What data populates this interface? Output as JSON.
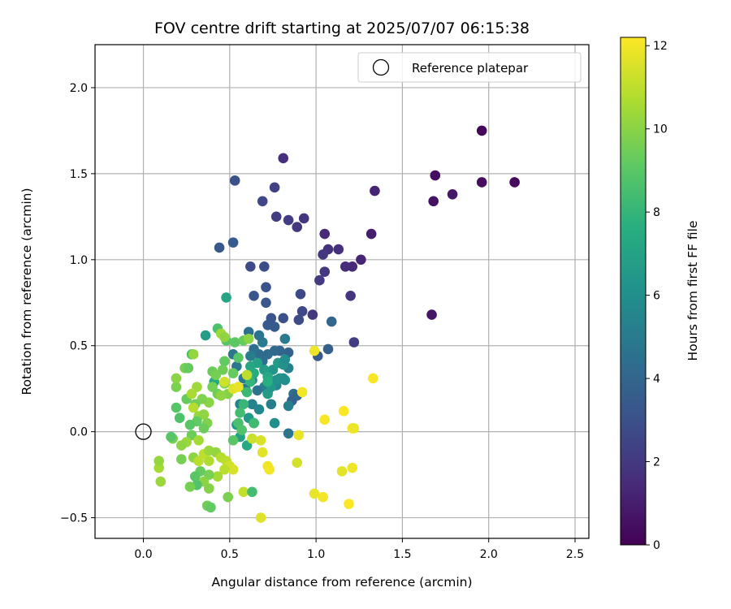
{
  "chart_data": {
    "type": "scatter",
    "title": "FOV centre drift starting at 2025/07/07 06:15:38",
    "xlabel": "Angular distance from reference (arcmin)",
    "ylabel": "Rotation from reference (arcmin)",
    "xlim": [
      -0.28,
      2.58
    ],
    "ylim": [
      -0.62,
      2.25
    ],
    "xticks": [
      0.0,
      0.5,
      1.0,
      1.5,
      2.0,
      2.5
    ],
    "xtick_labels": [
      "0.0",
      "0.5",
      "1.0",
      "1.5",
      "2.0",
      "2.5"
    ],
    "yticks": [
      -0.5,
      0.0,
      0.5,
      1.0,
      1.5,
      2.0
    ],
    "ytick_labels": [
      "−0.5",
      "0.0",
      "0.5",
      "1.0",
      "1.5",
      "2.0"
    ],
    "grid": true,
    "legend": {
      "position": "top-right",
      "label": "Reference platepar"
    },
    "reference_point": {
      "x": 0.0,
      "y": 0.0
    },
    "colorbar": {
      "label": "Hours from first FF file",
      "min": 0,
      "max": 12.2,
      "ticks": [
        0,
        2,
        4,
        6,
        8,
        10,
        12
      ],
      "tick_labels": [
        "0",
        "2",
        "4",
        "6",
        "8",
        "10",
        "12"
      ],
      "colormap": "viridis"
    },
    "points": [
      [
        1.96,
        1.75,
        0.2
      ],
      [
        2.15,
        1.45,
        0.3
      ],
      [
        1.96,
        1.45,
        0.4
      ],
      [
        1.69,
        1.49,
        0.5
      ],
      [
        1.68,
        1.34,
        0.6
      ],
      [
        1.79,
        1.38,
        0.8
      ],
      [
        1.67,
        0.68,
        0.7
      ],
      [
        1.34,
        1.4,
        1.2
      ],
      [
        1.32,
        1.15,
        1.0
      ],
      [
        1.26,
        1.0,
        1.3
      ],
      [
        1.21,
        0.96,
        1.4
      ],
      [
        1.17,
        0.96,
        1.5
      ],
      [
        1.13,
        1.06,
        1.6
      ],
      [
        1.07,
        1.06,
        1.7
      ],
      [
        1.05,
        1.15,
        1.5
      ],
      [
        1.04,
        1.03,
        1.9
      ],
      [
        1.05,
        0.93,
        2.0
      ],
      [
        1.02,
        0.88,
        2.1
      ],
      [
        0.98,
        0.68,
        2.0
      ],
      [
        1.2,
        0.79,
        1.8
      ],
      [
        1.22,
        0.52,
        2.2
      ],
      [
        0.81,
        1.59,
        1.6
      ],
      [
        0.93,
        1.24,
        1.8
      ],
      [
        0.89,
        1.19,
        1.9
      ],
      [
        0.84,
        1.23,
        2.2
      ],
      [
        0.77,
        1.25,
        2.2
      ],
      [
        0.76,
        1.42,
        2.4
      ],
      [
        0.69,
        1.34,
        2.6
      ],
      [
        0.53,
        1.46,
        3.0
      ],
      [
        0.52,
        1.1,
        3.5
      ],
      [
        0.44,
        1.07,
        3.4
      ],
      [
        0.62,
        0.96,
        2.8
      ],
      [
        0.7,
        0.96,
        2.9
      ],
      [
        0.91,
        0.8,
        2.7
      ],
      [
        0.92,
        0.7,
        2.6
      ],
      [
        0.9,
        0.65,
        2.8
      ],
      [
        0.81,
        0.66,
        3.0
      ],
      [
        0.74,
        0.66,
        3.2
      ],
      [
        0.76,
        0.61,
        3.5
      ],
      [
        0.72,
        0.62,
        3.4
      ],
      [
        0.71,
        0.75,
        3.3
      ],
      [
        0.71,
        0.84,
        3.1
      ],
      [
        0.64,
        0.79,
        3.2
      ],
      [
        1.09,
        0.64,
        4.0
      ],
      [
        1.07,
        0.48,
        3.7
      ],
      [
        1.01,
        0.44,
        3.5
      ],
      [
        0.82,
        0.54,
        5.0
      ],
      [
        0.84,
        0.46,
        3.8
      ],
      [
        0.79,
        0.47,
        3.9
      ],
      [
        0.76,
        0.47,
        4.1
      ],
      [
        0.72,
        0.45,
        4.2
      ],
      [
        0.69,
        0.41,
        4.5
      ],
      [
        0.67,
        0.45,
        4.3
      ],
      [
        0.64,
        0.48,
        4.4
      ],
      [
        0.62,
        0.44,
        5.1
      ],
      [
        0.69,
        0.52,
        5.0
      ],
      [
        0.67,
        0.56,
        4.6
      ],
      [
        0.61,
        0.58,
        4.5
      ],
      [
        0.52,
        0.45,
        4.8
      ],
      [
        0.54,
        0.38,
        4.7
      ],
      [
        0.58,
        0.31,
        4.9
      ],
      [
        0.63,
        0.3,
        5.2
      ],
      [
        0.7,
        0.26,
        5.3
      ],
      [
        0.72,
        0.23,
        5.0
      ],
      [
        0.66,
        0.24,
        4.6
      ],
      [
        0.59,
        0.25,
        4.8
      ],
      [
        0.56,
        0.16,
        5.3
      ],
      [
        0.63,
        0.16,
        5.4
      ],
      [
        0.67,
        0.13,
        5.5
      ],
      [
        0.74,
        0.16,
        5.1
      ],
      [
        0.77,
        0.27,
        5.6
      ],
      [
        0.81,
        0.31,
        5.7
      ],
      [
        0.84,
        0.37,
        5.3
      ],
      [
        0.87,
        0.22,
        4.4
      ],
      [
        0.89,
        0.21,
        4.0
      ],
      [
        0.86,
        0.18,
        3.8
      ],
      [
        0.84,
        0.15,
        5.2
      ],
      [
        0.84,
        -0.01,
        4.7
      ],
      [
        0.76,
        0.05,
        6.0
      ],
      [
        0.64,
        0.05,
        6.2
      ],
      [
        0.61,
        0.08,
        6.4
      ],
      [
        0.54,
        0.04,
        6.6
      ],
      [
        0.56,
        -0.03,
        6.9
      ],
      [
        0.6,
        -0.08,
        7.3
      ],
      [
        0.72,
        0.22,
        6.6
      ],
      [
        0.74,
        0.26,
        6.4
      ],
      [
        0.77,
        0.3,
        6.1
      ],
      [
        0.79,
        0.31,
        6.2
      ],
      [
        0.82,
        0.3,
        6.0
      ],
      [
        0.75,
        0.36,
        6.3
      ],
      [
        0.78,
        0.4,
        6.6
      ],
      [
        0.81,
        0.39,
        6.2
      ],
      [
        0.82,
        0.42,
        5.9
      ],
      [
        0.7,
        0.36,
        6.8
      ],
      [
        0.66,
        0.4,
        7.0
      ],
      [
        0.62,
        0.38,
        7.2
      ],
      [
        0.64,
        0.34,
        7.5
      ],
      [
        0.72,
        0.32,
        7.3
      ],
      [
        0.72,
        0.29,
        7.6
      ],
      [
        0.62,
        0.29,
        8.0
      ],
      [
        0.6,
        0.23,
        8.2
      ],
      [
        0.58,
        0.16,
        8.1
      ],
      [
        0.56,
        0.11,
        8.4
      ],
      [
        0.55,
        0.05,
        8.6
      ],
      [
        0.64,
        0.05,
        8.3
      ],
      [
        0.57,
        0.01,
        8.8
      ],
      [
        0.52,
        -0.05,
        9.0
      ],
      [
        0.41,
        0.29,
        7.3
      ],
      [
        0.36,
        0.56,
        6.7
      ],
      [
        0.48,
        0.78,
        7.1
      ],
      [
        0.28,
        0.45,
        8.4
      ],
      [
        0.43,
        0.6,
        8.7
      ],
      [
        0.48,
        0.53,
        8.9
      ],
      [
        0.53,
        0.52,
        9.1
      ],
      [
        0.58,
        0.53,
        9.3
      ],
      [
        0.55,
        0.43,
        9.0
      ],
      [
        0.47,
        0.41,
        9.2
      ],
      [
        0.46,
        0.36,
        9.5
      ],
      [
        0.4,
        0.35,
        9.4
      ],
      [
        0.42,
        0.33,
        9.6
      ],
      [
        0.52,
        0.34,
        9.3
      ],
      [
        0.47,
        0.28,
        9.8
      ],
      [
        0.4,
        0.26,
        9.6
      ],
      [
        0.43,
        0.22,
        9.5
      ],
      [
        0.49,
        0.22,
        9.9
      ],
      [
        0.45,
        0.21,
        10.1
      ],
      [
        0.38,
        0.17,
        10.0
      ],
      [
        0.34,
        0.19,
        9.8
      ],
      [
        0.3,
        0.16,
        9.5
      ],
      [
        0.25,
        0.19,
        9.3
      ],
      [
        0.19,
        0.26,
        9.7
      ],
      [
        0.19,
        0.31,
        10.0
      ],
      [
        0.24,
        0.37,
        9.6
      ],
      [
        0.26,
        0.37,
        9.3
      ],
      [
        0.29,
        0.45,
        10.2
      ],
      [
        0.31,
        0.26,
        10.4
      ],
      [
        0.28,
        0.22,
        10.6
      ],
      [
        0.29,
        0.14,
        10.8
      ],
      [
        0.32,
        0.09,
        10.3
      ],
      [
        0.35,
        0.1,
        10.1
      ],
      [
        0.37,
        0.05,
        9.8
      ],
      [
        0.35,
        0.02,
        9.4
      ],
      [
        0.31,
        0.06,
        9.2
      ],
      [
        0.27,
        0.04,
        9.0
      ],
      [
        0.21,
        0.08,
        8.7
      ],
      [
        0.19,
        0.14,
        8.9
      ],
      [
        0.28,
        -0.02,
        9.4
      ],
      [
        0.32,
        -0.05,
        10.5
      ],
      [
        0.25,
        -0.06,
        10.3
      ],
      [
        0.22,
        -0.08,
        10.1
      ],
      [
        0.17,
        -0.04,
        9.7
      ],
      [
        0.16,
        -0.03,
        8.9
      ],
      [
        0.22,
        -0.16,
        9.6
      ],
      [
        0.29,
        -0.15,
        10.0
      ],
      [
        0.32,
        -0.17,
        10.9
      ],
      [
        0.35,
        -0.13,
        11.0
      ],
      [
        0.38,
        -0.11,
        10.3
      ],
      [
        0.38,
        -0.17,
        10.7
      ],
      [
        0.42,
        -0.12,
        10.2
      ],
      [
        0.45,
        -0.15,
        10.8
      ],
      [
        0.48,
        -0.17,
        11.0
      ],
      [
        0.5,
        -0.2,
        11.3
      ],
      [
        0.52,
        -0.22,
        11.5
      ],
      [
        0.47,
        -0.22,
        10.9
      ],
      [
        0.43,
        -0.26,
        10.5
      ],
      [
        0.38,
        -0.25,
        9.7
      ],
      [
        0.35,
        -0.29,
        10.0
      ],
      [
        0.33,
        -0.23,
        9.3
      ],
      [
        0.3,
        -0.26,
        9.0
      ],
      [
        0.31,
        -0.31,
        8.8
      ],
      [
        0.27,
        -0.32,
        9.6
      ],
      [
        0.38,
        -0.33,
        9.9
      ],
      [
        0.37,
        -0.43,
        9.5
      ],
      [
        0.39,
        -0.44,
        9.2
      ],
      [
        0.49,
        -0.38,
        9.7
      ],
      [
        0.1,
        -0.29,
        10.3
      ],
      [
        0.09,
        -0.21,
        10.5
      ],
      [
        0.09,
        -0.17,
        10.2
      ],
      [
        0.45,
        0.57,
        10.4
      ],
      [
        0.47,
        0.55,
        10.1
      ],
      [
        0.61,
        0.54,
        10.0
      ],
      [
        0.6,
        0.33,
        11.0
      ],
      [
        0.47,
        0.29,
        11.3
      ],
      [
        0.52,
        0.25,
        11.6
      ],
      [
        0.55,
        0.26,
        11.8
      ],
      [
        0.63,
        -0.04,
        11.2
      ],
      [
        0.68,
        -0.05,
        11.5
      ],
      [
        0.69,
        -0.12,
        11.7
      ],
      [
        0.72,
        -0.2,
        11.9
      ],
      [
        0.73,
        -0.22,
        12.0
      ],
      [
        0.58,
        -0.35,
        11.1
      ],
      [
        0.63,
        -0.35,
        8.4
      ],
      [
        0.68,
        -0.5,
        11.6
      ],
      [
        0.9,
        -0.02,
        11.8
      ],
      [
        0.89,
        -0.18,
        11.4
      ],
      [
        0.92,
        0.23,
        12.0
      ],
      [
        0.99,
        0.47,
        11.9
      ],
      [
        1.05,
        0.07,
        12.1
      ],
      [
        1.16,
        0.12,
        12.2
      ],
      [
        1.21,
        0.02,
        12.0
      ],
      [
        1.22,
        0.02,
        11.9
      ],
      [
        1.15,
        -0.23,
        11.7
      ],
      [
        1.21,
        -0.21,
        11.9
      ],
      [
        1.33,
        0.31,
        12.1
      ],
      [
        0.99,
        -0.36,
        11.8
      ],
      [
        1.04,
        -0.38,
        12.0
      ],
      [
        1.19,
        -0.42,
        12.2
      ]
    ]
  }
}
